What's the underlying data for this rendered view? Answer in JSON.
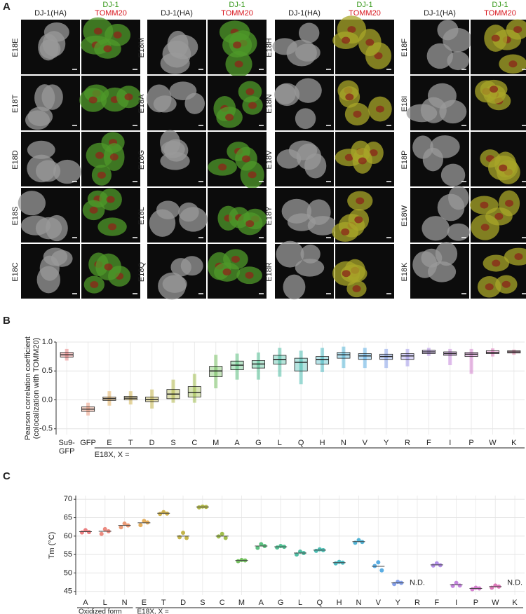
{
  "panel_a": {
    "label": "A",
    "groups": [
      {
        "headers": [
          "DJ-1(HA)",
          "DJ-1",
          "TOMM20"
        ],
        "rows": [
          "E18E",
          "E18T",
          "E18D",
          "E18S",
          "E18C"
        ]
      },
      {
        "headers": [
          "DJ-1(HA)",
          "DJ-1",
          "TOMM20"
        ],
        "rows": [
          "E18M",
          "E18A",
          "E18G",
          "E18L",
          "E18Q"
        ]
      },
      {
        "headers": [
          "DJ-1(HA)",
          "DJ-1",
          "TOMM20"
        ],
        "rows": [
          "E18H",
          "E18N",
          "E18V",
          "E18Y",
          "E18R"
        ]
      },
      {
        "headers": [
          "DJ-1(HA)",
          "DJ-1",
          "TOMM20"
        ],
        "rows": [
          "E18F",
          "E18I",
          "E18P",
          "E18W",
          "E18K"
        ]
      }
    ]
  },
  "chart_data": [
    {
      "type": "box",
      "panel_label": "B",
      "y_label": [
        "Pearson correlation coefficient",
        "(colocalization with TOMM20)"
      ],
      "group_label": "E18X, X =",
      "categories": [
        "Su9-GFP",
        "GFP",
        "E",
        "T",
        "D",
        "S",
        "C",
        "M",
        "A",
        "G",
        "L",
        "Q",
        "H",
        "N",
        "V",
        "Y",
        "R",
        "F",
        "I",
        "P",
        "W",
        "K"
      ],
      "median": [
        0.78,
        -0.16,
        0.02,
        0.03,
        0.01,
        0.1,
        0.13,
        0.5,
        0.6,
        0.62,
        0.7,
        0.65,
        0.7,
        0.78,
        0.76,
        0.75,
        0.76,
        0.83,
        0.8,
        0.79,
        0.82,
        0.83
      ],
      "q1": [
        0.74,
        -0.2,
        -0.01,
        0.0,
        -0.03,
        0.02,
        0.05,
        0.4,
        0.52,
        0.55,
        0.62,
        0.5,
        0.62,
        0.72,
        0.7,
        0.7,
        0.7,
        0.8,
        0.77,
        0.75,
        0.8,
        0.81
      ],
      "q3": [
        0.82,
        -0.12,
        0.05,
        0.06,
        0.05,
        0.18,
        0.23,
        0.58,
        0.67,
        0.68,
        0.77,
        0.72,
        0.75,
        0.82,
        0.8,
        0.79,
        0.8,
        0.86,
        0.83,
        0.82,
        0.85,
        0.85
      ],
      "min": [
        0.68,
        -0.27,
        -0.1,
        -0.08,
        -0.15,
        -0.05,
        -0.05,
        0.2,
        0.35,
        0.35,
        0.4,
        0.27,
        0.48,
        0.55,
        0.55,
        0.55,
        0.58,
        0.76,
        0.6,
        0.45,
        0.75,
        0.78
      ],
      "max": [
        0.88,
        -0.05,
        0.15,
        0.15,
        0.18,
        0.35,
        0.45,
        0.78,
        0.8,
        0.82,
        0.9,
        0.85,
        0.9,
        0.92,
        0.9,
        0.88,
        0.88,
        0.9,
        0.88,
        0.88,
        0.89,
        0.87
      ],
      "colors": [
        "#e8696b",
        "#e98a6a",
        "#e0a040",
        "#c9a630",
        "#b9a82a",
        "#a6ad2a",
        "#8fb32e",
        "#5fb646",
        "#3fb66a",
        "#33b580",
        "#2fb394",
        "#2db3a6",
        "#2fb0ba",
        "#35a8cf",
        "#3d9fde",
        "#6e8fe6",
        "#8f85e6",
        "#a67ae4",
        "#bb70d8",
        "#cc68c6",
        "#d862ae",
        "#e06596"
      ],
      "ylim": [
        -0.6,
        1.0
      ],
      "yticks": [
        -0.5,
        {
          "value": 0,
          "label": "0.0"
        },
        0.5,
        {
          "value": 1,
          "label": "1.0"
        }
      ],
      "grid": true
    },
    {
      "type": "dot",
      "panel_label": "C",
      "y_label": "Tm (°C)",
      "group_labels": [
        [
          "Oxidized form",
          "E18X, X ="
        ],
        [
          "E18X, X ="
        ]
      ],
      "categories": [
        "A",
        "L",
        "N",
        "E",
        "T",
        "D",
        "S",
        "C",
        "M",
        "A",
        "G",
        "L",
        "Q",
        "H",
        "N",
        "V",
        "Y",
        "R",
        "F",
        "I",
        "P",
        "W",
        "K"
      ],
      "values": [
        61.2,
        61.3,
        62.9,
        63.6,
        66.2,
        60.0,
        67.9,
        60.0,
        53.4,
        57.3,
        57.1,
        55.4,
        56.2,
        52.8,
        58.5,
        51.8,
        47.3,
        null,
        52.2,
        46.8,
        45.8,
        46.3,
        null
      ],
      "value_labels": [
        null,
        null,
        null,
        null,
        null,
        null,
        null,
        null,
        null,
        null,
        null,
        null,
        null,
        null,
        null,
        null,
        null,
        "N.D.",
        null,
        null,
        null,
        null,
        "N.D."
      ],
      "points": [
        [
          61.0,
          61.6,
          61.1
        ],
        [
          60.6,
          61.9,
          61.3
        ],
        [
          62.4,
          63.4,
          62.9
        ],
        [
          63.0,
          64.1,
          63.7
        ],
        [
          66.0,
          66.5,
          66.1
        ],
        [
          59.7,
          60.9,
          59.5
        ],
        [
          67.8,
          68.0,
          67.9
        ],
        [
          59.9,
          60.6,
          59.5
        ],
        [
          53.2,
          53.5,
          53.4
        ],
        [
          56.8,
          57.8,
          57.3
        ],
        [
          56.9,
          57.3,
          57.1
        ],
        [
          55.0,
          55.8,
          55.4
        ],
        [
          56.0,
          56.4,
          56.2
        ],
        [
          52.6,
          53.0,
          52.8
        ],
        [
          58.2,
          58.9,
          58.4
        ],
        [
          51.9,
          52.9,
          50.7
        ],
        [
          47.0,
          47.6,
          47.3
        ],
        null,
        [
          52.0,
          52.6,
          52.1
        ],
        [
          46.5,
          47.3,
          46.6
        ],
        [
          45.6,
          46.0,
          45.8
        ],
        [
          46.0,
          46.6,
          46.3
        ],
        null
      ],
      "colors": [
        "#e8696b",
        "#e9776a",
        "#e88a5e",
        "#e0a040",
        "#c9a630",
        "#b9a82a",
        "#a6ad2a",
        "#8fb32e",
        "#5fb646",
        "#3fb66a",
        "#33b580",
        "#2fb394",
        "#2db3a6",
        "#2fb0ba",
        "#35a8cf",
        "#3d9fde",
        "#6e8fe6",
        "#8f85e6",
        "#a67ae4",
        "#bb70d8",
        "#cc68c6",
        "#d862ae",
        "#e06596"
      ],
      "ylim": [
        44,
        71
      ],
      "yticks": [
        45,
        50,
        55,
        60,
        65,
        70
      ],
      "grid": true
    }
  ]
}
